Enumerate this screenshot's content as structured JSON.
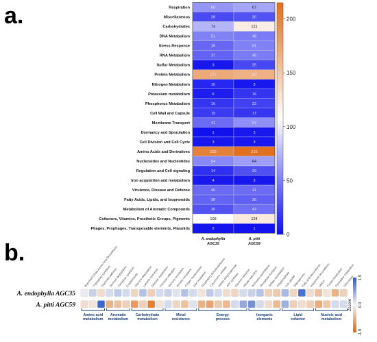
{
  "panels": {
    "a": "a.",
    "b": "b."
  },
  "chart_data": [
    {
      "type": "heatmap",
      "columns": [
        "A. endophylla AGC35",
        "A. pitti AGC59"
      ],
      "categories": [
        "Respiration",
        "Miscellaneous",
        "Carbohydrates",
        "DNA Metabolism",
        "Stress Response",
        "RNA Metabolism",
        "Sulfur Metabolism",
        "Protein Metabolism",
        "Nitrogen Metabolism",
        "Potassium metabolism",
        "Phosphorus Metabolism",
        "Cell Wall and Capsule",
        "Membrane Transport",
        "Dormancy and Sporulation",
        "Cell Division and Cell Cycle",
        "Amino Acids and Derivatives",
        "Nucleosides and Nucleotides",
        "Regulation and Cell signaling",
        "Iron acquisition and metabolism",
        "Virulence, Disease and Defense",
        "Fatty Acids, Lipids, and Isoprenoids",
        "Metabolism of Aromatic Compounds",
        "Cofactors, Vitamins, Prosthetic Groups, Pigments",
        "Phages, Prophages, Transposable elements, Plasmids"
      ],
      "values": [
        [
          60,
          67
        ],
        [
          26,
          30
        ],
        [
          74,
          121
        ],
        [
          51,
          48
        ],
        [
          39,
          51
        ],
        [
          37,
          48
        ],
        [
          3,
          25
        ],
        [
          172,
          167
        ],
        [
          10,
          3
        ],
        [
          6,
          16
        ],
        [
          16,
          22
        ],
        [
          19,
          17
        ],
        [
          41,
          57
        ],
        [
          1,
          3
        ],
        [
          3,
          3
        ],
        [
          203,
          215
        ],
        [
          54,
          64
        ],
        [
          14,
          29
        ],
        [
          4,
          3
        ],
        [
          40,
          41
        ],
        [
          38,
          36
        ],
        [
          30,
          43
        ],
        [
          109,
          124
        ],
        [
          2,
          1
        ]
      ],
      "colorbar": {
        "min": 0,
        "max": 215,
        "ticks": [
          0,
          50,
          100,
          150,
          200
        ]
      },
      "colors": {
        "low": "#1010ee",
        "mid": "#ffffff",
        "high": "#e07020"
      }
    },
    {
      "type": "heatmap",
      "rows": [
        "A. endophylla AGC35",
        "A. pitti AGC59"
      ],
      "functions": [
        "Branched-Chain Amino Acid Biosynthesis",
        "Tryptophan synthesis",
        "Glycerate pathway",
        "Sucrose degradation",
        "Trehalose synthesis",
        "D-galactarate",
        "Glycerol degradation",
        "Lactose hydrolysis",
        "Glucose metabolism",
        "Fructose utilization",
        "Mercury resistance",
        "Arsenic resistance",
        "Copper homeostasis",
        "Zinc resistance",
        "Respiratory dehydrogenases",
        "Cytochrome oxidase",
        "NADH dehydrogenase",
        "ATP synthase",
        "Electron transport",
        "Nitrate reduction",
        "Ammonia assimilation",
        "Phosphate transport",
        "Sulfate assimilation",
        "Polyphosphate",
        "Iron uptake",
        "Siderophores",
        "Fatty acid biosynthesis",
        "Isoprenoid biosynthesis",
        "Lipid A",
        "Purine metabolism",
        "Pyrimidine metabolism",
        "DNA repair"
      ],
      "values": [
        [
          0.1,
          -0.3
        ],
        [
          0.4,
          -0.2
        ],
        [
          -0.3,
          1.7
        ],
        [
          0.3,
          -0.9
        ],
        [
          0.5,
          -0.7
        ],
        [
          0.3,
          -0.5
        ],
        [
          -0.4,
          -1.2
        ],
        [
          0.6,
          -0.5
        ],
        [
          -0.5,
          -1.6
        ],
        [
          0.3,
          -0.2
        ],
        [
          0.4,
          0.3
        ],
        [
          0.2,
          -0.4
        ],
        [
          0.6,
          -0.7
        ],
        [
          0.3,
          0.2
        ],
        [
          -0.2,
          -0.9
        ],
        [
          0.5,
          -1.1
        ],
        [
          0.3,
          -0.6
        ],
        [
          -0.3,
          -0.8
        ],
        [
          -0.4,
          0.3
        ],
        [
          0.3,
          0.9
        ],
        [
          0.4,
          1.2
        ],
        [
          0.6,
          0.3
        ],
        [
          -0.5,
          -0.3
        ],
        [
          -0.6,
          -0.8
        ],
        [
          0.7,
          0.8
        ],
        [
          -0.4,
          -0.5
        ],
        [
          1.6,
          -0.3
        ],
        [
          -0.3,
          -0.5
        ],
        [
          -0.7,
          -1.0
        ],
        [
          -0.2,
          -0.6
        ],
        [
          -0.9,
          0.3
        ],
        [
          -0.5,
          0.3
        ]
      ],
      "groups": [
        {
          "label": "Amino acid metabolism",
          "count": 3
        },
        {
          "label": "Aromatic metabolism",
          "count": 3
        },
        {
          "label": "Carbohydrate metabolism",
          "count": 4
        },
        {
          "label": "Metal resistance",
          "count": 4
        },
        {
          "label": "Energy process",
          "count": 6
        },
        {
          "label": "Inorganic elements",
          "count": 4
        },
        {
          "label": "Lipid cofactor",
          "count": 4
        },
        {
          "label": "Nucleic acid metabolism",
          "count": 4
        }
      ],
      "colorbar": {
        "label": "Zscore",
        "min": -1.9,
        "max": 1.9,
        "ticks": [
          "-1.9",
          "0.0",
          "1.9"
        ]
      },
      "colors": {
        "low": "#e06a10",
        "mid": "#f3f3f3",
        "high": "#2a58c8"
      }
    }
  ]
}
